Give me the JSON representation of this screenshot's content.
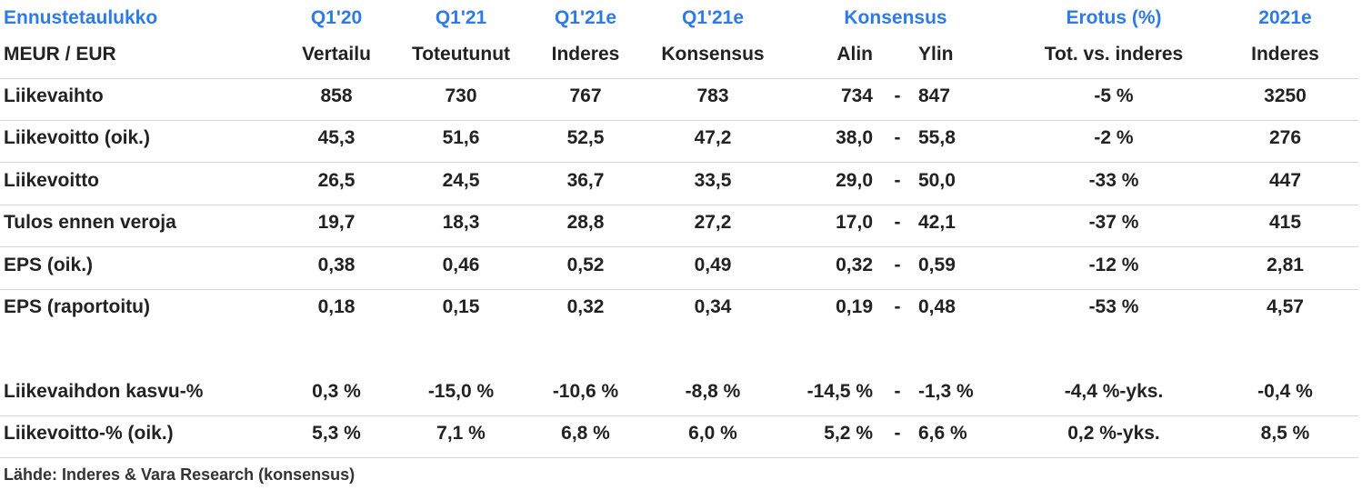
{
  "header1": {
    "title": "Ennustetaulukko",
    "q1_20": "Q1'20",
    "q1_21": "Q1'21",
    "q1_21e_a": "Q1'21e",
    "q1_21e_b": "Q1'21e",
    "konsensus": "Konsensus",
    "erotus": "Erotus (%)",
    "y2021e": "2021e"
  },
  "header2": {
    "unit": "MEUR / EUR",
    "vertailu": "Vertailu",
    "toteutunut": "Toteutunut",
    "inderes": "Inderes",
    "konsensus": "Konsensus",
    "alin": "Alin",
    "ylin": "Ylin",
    "tot_vs_inderes": "Tot. vs. inderes",
    "inderes2": "Inderes"
  },
  "rows": [
    {
      "label": "Liikevaihto",
      "c1": "858",
      "c2": "730",
      "c3": "767",
      "c4": "783",
      "low": "734",
      "dash": "-",
      "high": "847",
      "diff": "-5 %",
      "y2021": "3250"
    },
    {
      "label": "Liikevoitto (oik.)",
      "c1": "45,3",
      "c2": "51,6",
      "c3": "52,5",
      "c4": "47,2",
      "low": "38,0",
      "dash": "-",
      "high": "55,8",
      "diff": "-2 %",
      "y2021": "276"
    },
    {
      "label": "Liikevoitto",
      "c1": "26,5",
      "c2": "24,5",
      "c3": "36,7",
      "c4": "33,5",
      "low": "29,0",
      "dash": "-",
      "high": "50,0",
      "diff": "-33 %",
      "y2021": "447"
    },
    {
      "label": "Tulos ennen veroja",
      "c1": "19,7",
      "c2": "18,3",
      "c3": "28,8",
      "c4": "27,2",
      "low": "17,0",
      "dash": "-",
      "high": "42,1",
      "diff": "-37 %",
      "y2021": "415"
    },
    {
      "label": "EPS (oik.)",
      "c1": "0,38",
      "c2": "0,46",
      "c3": "0,52",
      "c4": "0,49",
      "low": "0,32",
      "dash": "-",
      "high": "0,59",
      "diff": "-12 %",
      "y2021": "2,81"
    },
    {
      "label": "EPS (raportoitu)",
      "c1": "0,18",
      "c2": "0,15",
      "c3": "0,32",
      "c4": "0,34",
      "low": "0,19",
      "dash": "-",
      "high": "0,48",
      "diff": "-53 %",
      "y2021": "4,57"
    }
  ],
  "pct_rows": [
    {
      "label": "Liikevaihdon kasvu-%",
      "c1": "0,3 %",
      "c2": "-15,0 %",
      "c3": "-10,6 %",
      "c4": "-8,8 %",
      "low": "-14,5 %",
      "dash": "-",
      "high": "-1,3 %",
      "diff": "-4,4 %-yks.",
      "y2021": "-0,4 %"
    },
    {
      "label": "Liikevoitto-% (oik.)",
      "c1": "5,3 %",
      "c2": "7,1 %",
      "c3": "6,8 %",
      "c4": "6,0 %",
      "low": "5,2 %",
      "dash": "-",
      "high": "6,6 %",
      "diff": "0,2 %-yks.",
      "y2021": "8,5 %"
    }
  ],
  "source": "Lähde: Inderes & Vara Research  (konsensus)"
}
